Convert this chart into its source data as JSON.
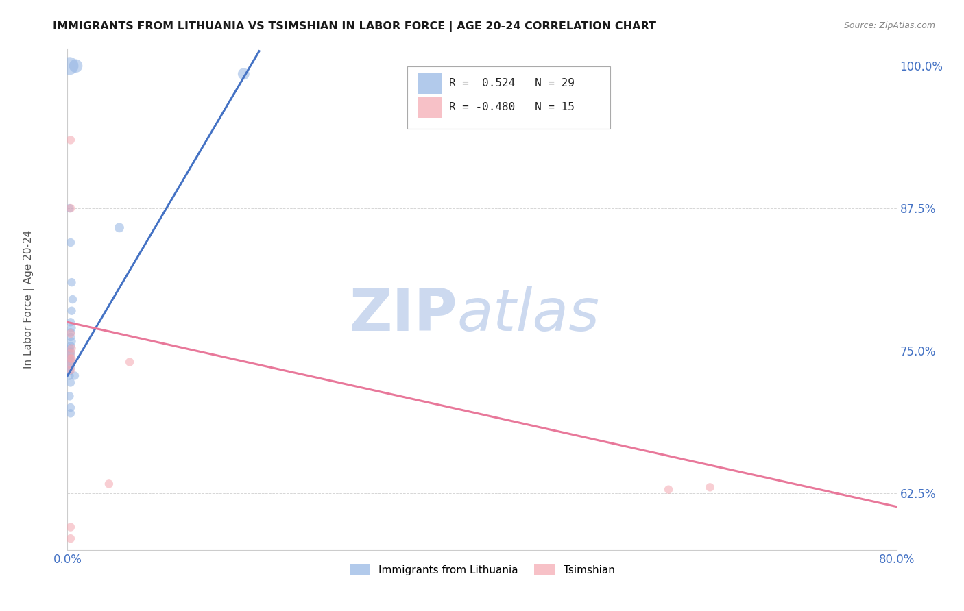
{
  "title": "IMMIGRANTS FROM LITHUANIA VS TSIMSHIAN IN LABOR FORCE | AGE 20-24 CORRELATION CHART",
  "source": "Source: ZipAtlas.com",
  "ylabel": "In Labor Force | Age 20-24",
  "xlim": [
    0.0,
    0.8
  ],
  "ylim": [
    0.575,
    1.015
  ],
  "xticks": [
    0.0,
    0.1,
    0.2,
    0.3,
    0.4,
    0.5,
    0.6,
    0.7,
    0.8
  ],
  "xticklabels": [
    "0.0%",
    "",
    "",
    "",
    "",
    "",
    "",
    "",
    "80.0%"
  ],
  "yticks": [
    0.625,
    0.75,
    0.875,
    1.0
  ],
  "yticklabels": [
    "62.5%",
    "75.0%",
    "87.5%",
    "100.0%"
  ],
  "legend_blue_r": "R =  0.524",
  "legend_blue_n": "N = 29",
  "legend_pink_r": "R = -0.480",
  "legend_pink_n": "N = 15",
  "blue_color": "#92B4E3",
  "pink_color": "#F4A7B0",
  "blue_line_color": "#4472C4",
  "pink_line_color": "#E8789A",
  "blue_scatter_x": [
    0.002,
    0.008,
    0.002,
    0.003,
    0.004,
    0.005,
    0.004,
    0.003,
    0.004,
    0.003,
    0.003,
    0.004,
    0.003,
    0.002,
    0.003,
    0.003,
    0.002,
    0.003,
    0.003,
    0.003,
    0.002,
    0.002,
    0.05,
    0.007,
    0.003,
    0.002,
    0.003,
    0.003,
    0.17
  ],
  "blue_scatter_y": [
    1.0,
    1.0,
    0.875,
    0.845,
    0.81,
    0.795,
    0.785,
    0.775,
    0.77,
    0.766,
    0.762,
    0.758,
    0.754,
    0.752,
    0.749,
    0.746,
    0.743,
    0.741,
    0.738,
    0.735,
    0.732,
    0.728,
    0.858,
    0.728,
    0.722,
    0.71,
    0.7,
    0.695,
    0.993
  ],
  "blue_sizes": [
    350,
    200,
    80,
    80,
    80,
    80,
    80,
    80,
    80,
    80,
    80,
    80,
    80,
    80,
    80,
    80,
    80,
    80,
    80,
    80,
    80,
    80,
    100,
    80,
    80,
    80,
    80,
    80,
    150
  ],
  "pink_scatter_x": [
    0.003,
    0.003,
    0.003,
    0.004,
    0.003,
    0.003,
    0.004,
    0.003,
    0.06,
    0.003,
    0.04,
    0.58,
    0.62,
    0.003,
    0.003
  ],
  "pink_scatter_y": [
    0.935,
    0.875,
    0.765,
    0.752,
    0.748,
    0.743,
    0.743,
    0.738,
    0.74,
    0.733,
    0.633,
    0.628,
    0.63,
    0.585,
    0.595
  ],
  "pink_sizes": [
    80,
    80,
    80,
    80,
    80,
    80,
    80,
    80,
    80,
    80,
    80,
    80,
    80,
    80,
    80
  ],
  "blue_trendline_x": [
    0.0,
    0.185
  ],
  "blue_trendline_y": [
    0.728,
    1.013
  ],
  "pink_trendline_x": [
    0.0,
    0.8
  ],
  "pink_trendline_y": [
    0.775,
    0.613
  ],
  "watermark_zip": "ZIP",
  "watermark_atlas": "atlas",
  "figsize": [
    14.06,
    8.92
  ],
  "dpi": 100
}
